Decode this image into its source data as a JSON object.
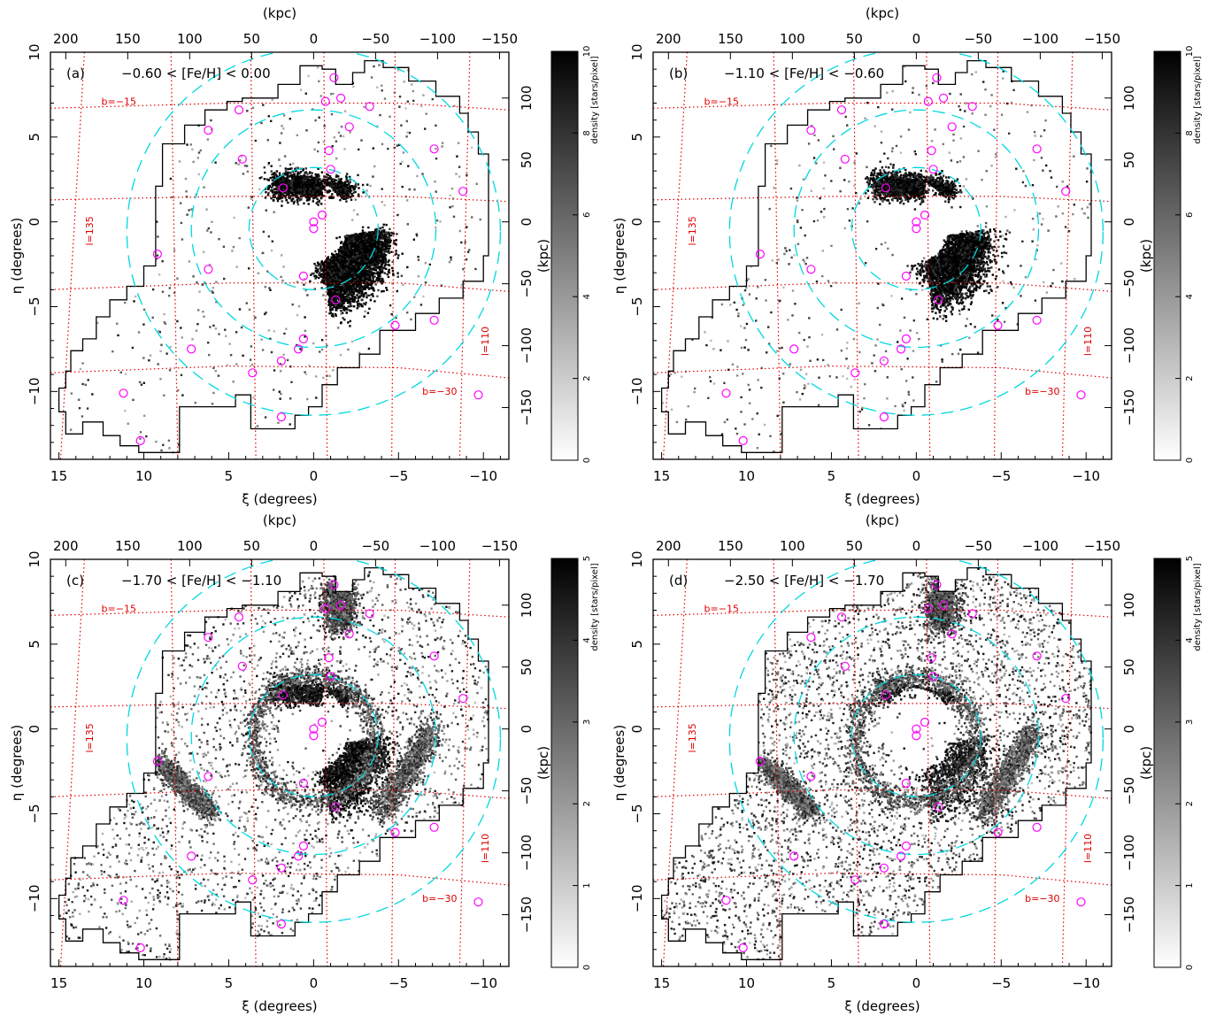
{
  "chart_data": [
    {
      "type": "heatmap",
      "panel": "(a)",
      "title": "−0.60 < [Fe/H] < 0.00",
      "xlabel": "ξ (degrees)",
      "ylabel": "η (degrees)",
      "x2label": "(kpc)",
      "y2label": "(kpc)",
      "xlim": [
        15.5,
        -11.5
      ],
      "ylim": [
        -14,
        10
      ],
      "colorbar": {
        "label": "density [stars/pixel]",
        "range": [
          0,
          10
        ],
        "ticks": [
          "0",
          "2",
          "4",
          "6",
          "8",
          "10"
        ]
      },
      "grid_labels": [
        "b=−15",
        "b=−30",
        "l=135",
        "l=110"
      ]
    },
    {
      "type": "heatmap",
      "panel": "(b)",
      "title": "−1.10 < [Fe/H] < −0.60",
      "xlabel": "ξ (degrees)",
      "ylabel": "η (degrees)",
      "x2label": "(kpc)",
      "y2label": "(kpc)",
      "xlim": [
        15.5,
        -11.5
      ],
      "ylim": [
        -14,
        10
      ],
      "colorbar": {
        "label": "density [stars/pixel]",
        "range": [
          0,
          10
        ],
        "ticks": [
          "0",
          "2",
          "4",
          "6",
          "8",
          "10"
        ]
      },
      "grid_labels": [
        "b=−15",
        "b=−30",
        "l=135",
        "l=110"
      ]
    },
    {
      "type": "heatmap",
      "panel": "(c)",
      "title": "−1.70 < [Fe/H] < −1.10",
      "xlabel": "ξ (degrees)",
      "ylabel": "η (degrees)",
      "x2label": "(kpc)",
      "y2label": "(kpc)",
      "xlim": [
        15.5,
        -11.5
      ],
      "ylim": [
        -14,
        10
      ],
      "colorbar": {
        "label": "density [stars/pixel]",
        "range": [
          0,
          5
        ],
        "ticks": [
          "0",
          "1",
          "2",
          "3",
          "4",
          "5"
        ]
      },
      "grid_labels": [
        "b=−15",
        "b=−30",
        "l=135",
        "l=110"
      ]
    },
    {
      "type": "heatmap",
      "panel": "(d)",
      "title": "−2.50 < [Fe/H] < −1.70",
      "xlabel": "ξ (degrees)",
      "ylabel": "η (degrees)",
      "x2label": "(kpc)",
      "y2label": "(kpc)",
      "xlim": [
        15.5,
        -11.5
      ],
      "ylim": [
        -14,
        10
      ],
      "colorbar": {
        "label": "density [stars/pixel]",
        "range": [
          0,
          5
        ],
        "ticks": [
          "0",
          "1",
          "2",
          "3",
          "4",
          "5"
        ]
      },
      "grid_labels": [
        "b=−15",
        "b=−30",
        "l=135",
        "l=110"
      ]
    }
  ],
  "axes": {
    "x_ticks": [
      15,
      10,
      5,
      0,
      -5,
      -10
    ],
    "x_tick_labels": [
      "15",
      "10",
      "5",
      "0",
      "−5",
      "−10"
    ],
    "y_ticks": [
      10,
      5,
      0,
      -5,
      -10
    ],
    "y_tick_labels": [
      "10",
      "5",
      "0",
      "−5",
      "−10"
    ],
    "top_kpc_values": [
      200,
      150,
      100,
      50,
      0,
      -50,
      -100,
      -150
    ],
    "top_kpc_labels": [
      "200",
      "150",
      "100",
      "50",
      "0",
      "−50",
      "−100",
      "−150"
    ],
    "right_kpc_values": [
      100,
      50,
      0,
      -50,
      -100,
      -150
    ],
    "right_kpc_labels": [
      "100",
      "50",
      "0",
      "−50",
      "−100",
      "−150"
    ]
  },
  "colors": {
    "footprint": "#000000",
    "ellipses": "#00d8e0",
    "circles": "#ff00ff",
    "grid": "#e00000"
  }
}
